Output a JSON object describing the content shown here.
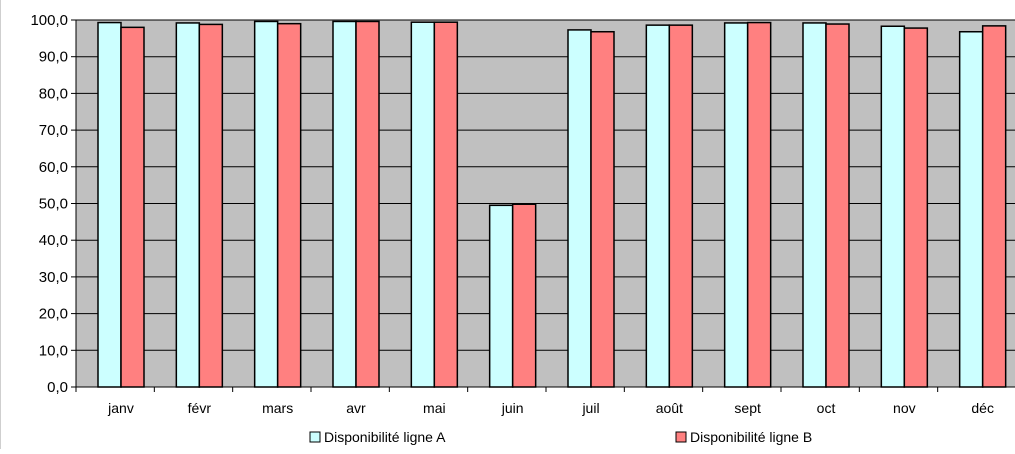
{
  "chart_data": {
    "type": "bar",
    "title": "",
    "xlabel": "",
    "ylabel": "",
    "ylim": [
      0,
      100
    ],
    "ytick_step": 10,
    "ytick_labels": [
      "0,0",
      "10,0",
      "20,0",
      "30,0",
      "40,0",
      "50,0",
      "60,0",
      "70,0",
      "80,0",
      "90,0",
      "100,0"
    ],
    "grid": true,
    "legend_position": "bottom",
    "plot_background": "#c0c0c0",
    "categories": [
      "janv",
      "févr",
      "mars",
      "avr",
      "mai",
      "juin",
      "juil",
      "août",
      "sept",
      "oct",
      "nov",
      "déc"
    ],
    "series": [
      {
        "name": "Disponibilité ligne A",
        "color": "#ccffff",
        "values": [
          99.3,
          99.2,
          99.6,
          99.6,
          99.4,
          49.5,
          97.3,
          98.6,
          99.2,
          99.2,
          98.3,
          96.8
        ]
      },
      {
        "name": "Disponibilité ligne B",
        "color": "#ff8080",
        "values": [
          98.0,
          98.8,
          99.0,
          99.6,
          99.4,
          49.8,
          96.8,
          98.6,
          99.3,
          98.9,
          97.8,
          98.4
        ]
      }
    ]
  }
}
